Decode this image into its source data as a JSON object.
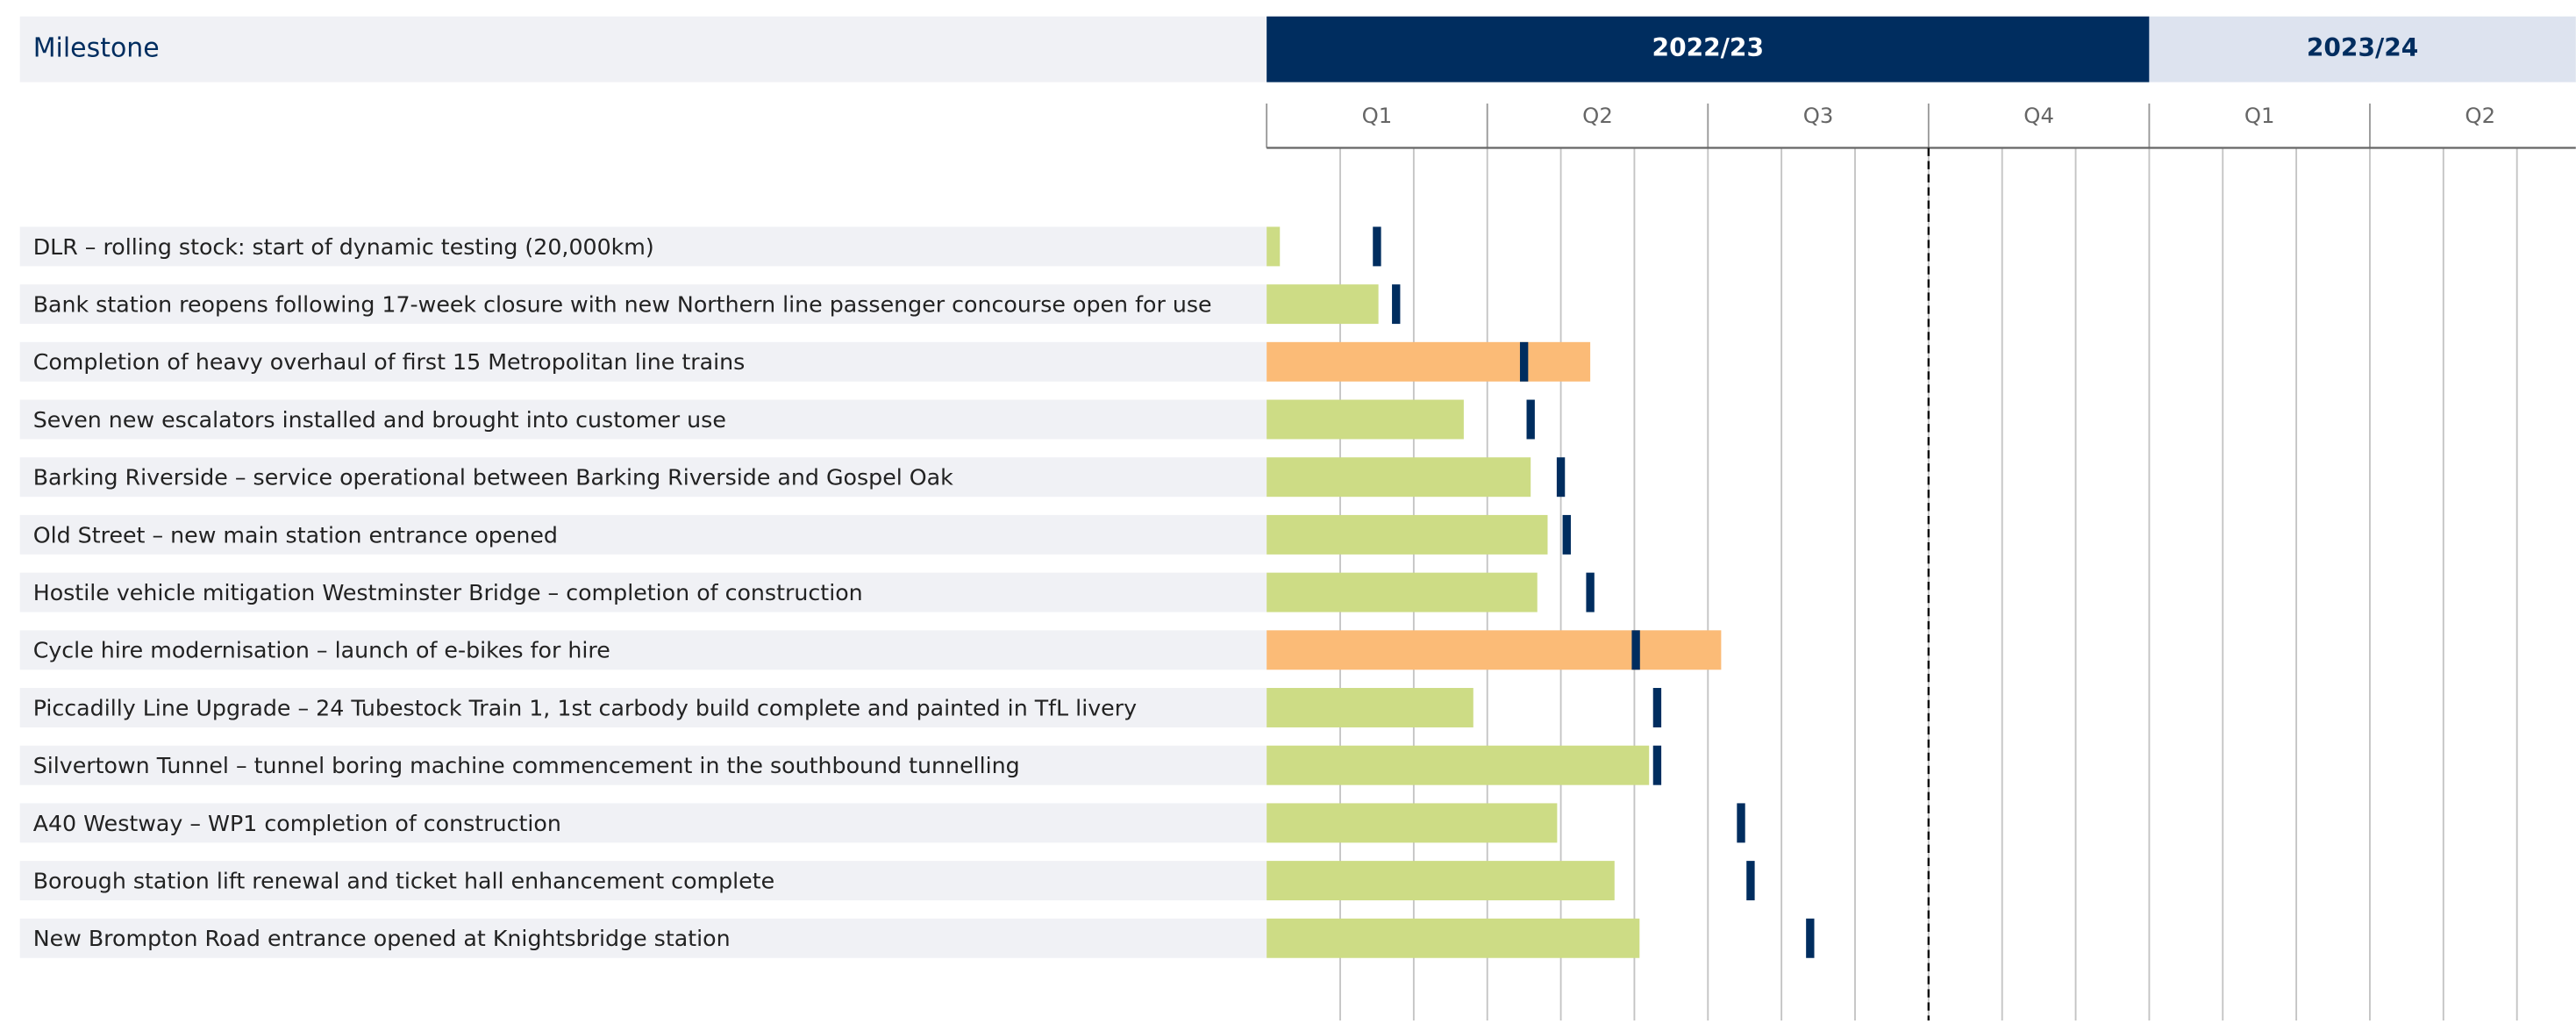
{
  "chart_data": {
    "type": "gantt",
    "label_header": "Milestone",
    "periods": [
      {
        "label": "2022/23",
        "quarters": [
          "Q1",
          "Q2",
          "Q3",
          "Q4"
        ]
      },
      {
        "label": "2023/24",
        "quarters": [
          "Q1",
          "Q2"
        ]
      }
    ],
    "xlim": [
      0,
      17.8
    ],
    "xticks": [
      0,
      1,
      2,
      3,
      4,
      5,
      6,
      7,
      8,
      9,
      10,
      11,
      12,
      13,
      14,
      15,
      16,
      17
    ],
    "reference_line": 9,
    "categories": [
      "DLR – rolling stock: start of dynamic testing (20,000km)",
      "Bank station reopens following 17-week closure with new Northern line passenger concourse open for use",
      "Completion of heavy overhaul of first 15 Metropolitan line trains",
      "Seven new escalators installed and brought into customer use",
      "Barking Riverside – service operational between Barking Riverside and Gospel Oak",
      "Old Street – new main station entrance opened",
      "Hostile vehicle mitigation Westminster Bridge – completion of construction",
      "Cycle hire modernisation – launch of e-bikes for hire",
      "Piccadilly Line Upgrade – 24 Tubestock Train 1, 1st carbody build complete and painted in TfL livery",
      "Silvertown Tunnel – tunnel boring machine commencement in the southbound tunnelling",
      "A40 Westway – WP1 completion of construction",
      "Borough station lift renewal and ticket hall enhancement complete",
      "New Brompton Road entrance opened at Knightsbridge station"
    ],
    "progress": [
      0.18,
      1.52,
      4.4,
      2.68,
      3.59,
      3.82,
      3.68,
      6.18,
      2.81,
      5.2,
      3.95,
      4.73,
      5.07
    ],
    "targets": [
      1.5,
      1.76,
      3.5,
      3.59,
      4.0,
      4.08,
      4.4,
      5.02,
      5.31,
      5.31,
      6.45,
      6.58,
      7.39
    ],
    "bar_colors": [
      "#cddc85",
      "#cddc85",
      "#fbbb77",
      "#cddc85",
      "#cddc85",
      "#cddc85",
      "#cddc85",
      "#fbbb77",
      "#cddc85",
      "#cddc85",
      "#cddc85",
      "#cddc85",
      "#cddc85"
    ],
    "target_color": "#002d5f",
    "period_colors": [
      "#002d5f",
      "#dde3ef"
    ]
  }
}
